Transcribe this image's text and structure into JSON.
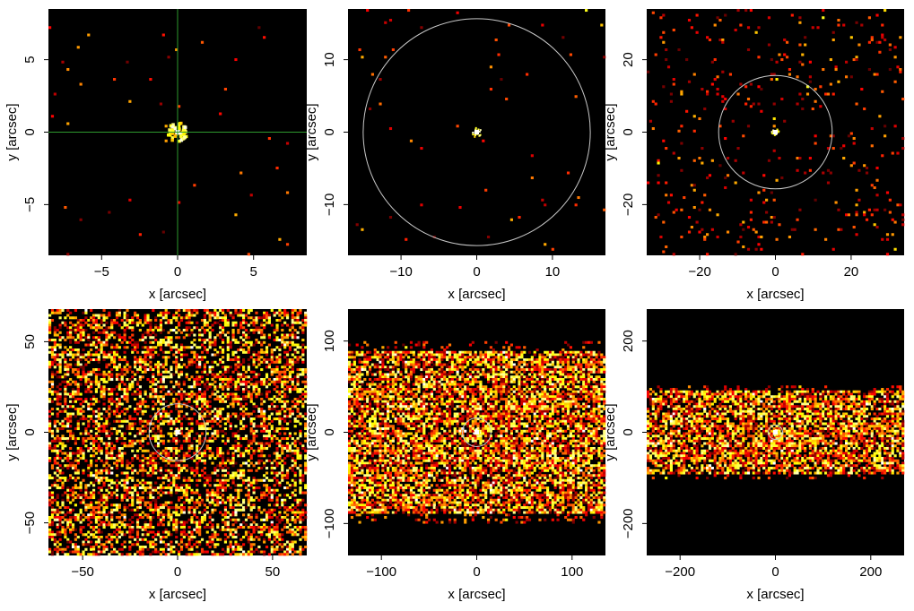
{
  "colors": {
    "background": "#000000",
    "circle": "#c8c8c8",
    "crosshair": "#2e9a2e"
  },
  "chart_data": [
    {
      "type": "heatmap",
      "xlabel": "x [arcsec]",
      "ylabel": "y [arcsec]",
      "xlim": [
        -8.5,
        8.5
      ],
      "ylim": [
        -8.5,
        8.5
      ],
      "xticks": [
        -5,
        0,
        5
      ],
      "yticks": [
        -5,
        0,
        5
      ],
      "overlay": "crosshair",
      "source": [
        0,
        0
      ],
      "band_halfwidth": null
    },
    {
      "type": "heatmap",
      "xlabel": "x [arcsec]",
      "ylabel": "y [arcsec]",
      "xlim": [
        -17,
        17
      ],
      "ylim": [
        -17,
        17
      ],
      "xticks": [
        -10,
        0,
        10
      ],
      "yticks": [
        -10,
        0,
        10
      ],
      "overlay": "circle",
      "circle_radius": 15,
      "source": [
        0,
        0
      ],
      "band_halfwidth": null
    },
    {
      "type": "heatmap",
      "xlabel": "x [arcsec]",
      "ylabel": "y [arcsec]",
      "xlim": [
        -34,
        34
      ],
      "ylim": [
        -34,
        34
      ],
      "xticks": [
        -20,
        0,
        20
      ],
      "yticks": [
        -20,
        0,
        20
      ],
      "overlay": "circle",
      "circle_radius": 15,
      "source": [
        0,
        0
      ],
      "band_halfwidth": null
    },
    {
      "type": "heatmap",
      "xlabel": "x [arcsec]",
      "ylabel": "y [arcsec]",
      "xlim": [
        -68,
        68
      ],
      "ylim": [
        -68,
        68
      ],
      "xticks": [
        -50,
        0,
        50
      ],
      "yticks": [
        -50,
        0,
        50
      ],
      "overlay": "circle",
      "circle_radius": 15,
      "source": [
        0,
        0
      ],
      "band_halfwidth": 90
    },
    {
      "type": "heatmap",
      "xlabel": "x [arcsec]",
      "ylabel": "y [arcsec]",
      "xlim": [
        -135,
        135
      ],
      "ylim": [
        -135,
        135
      ],
      "xticks": [
        -100,
        0,
        100
      ],
      "yticks": [
        -100,
        0,
        100
      ],
      "overlay": "circle",
      "circle_radius": 15,
      "source": [
        0,
        0
      ],
      "band_halfwidth": 90
    },
    {
      "type": "heatmap",
      "xlabel": "x [arcsec]",
      "ylabel": "y [arcsec]",
      "xlim": [
        -270,
        270
      ],
      "ylim": [
        -270,
        270
      ],
      "xticks": [
        -200,
        0,
        200
      ],
      "yticks": [
        -200,
        0,
        200
      ],
      "overlay": "circle",
      "circle_radius": 15,
      "source": [
        0,
        0
      ],
      "band_halfwidth": 90
    }
  ]
}
